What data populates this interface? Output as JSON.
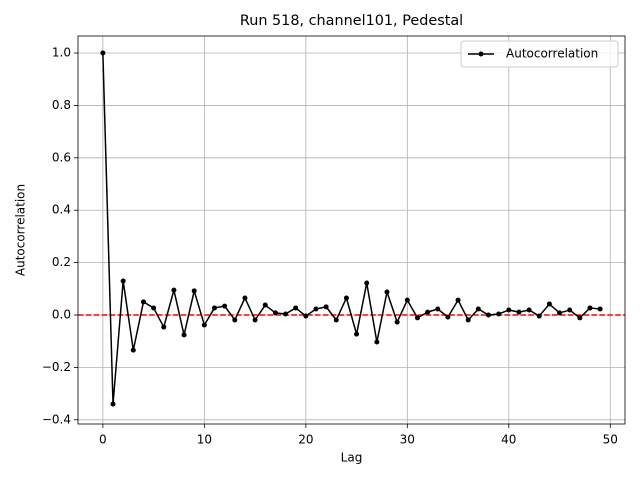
{
  "chart_data": {
    "type": "line",
    "title": "Run 518, channel101, Pedestal",
    "xlabel": "Lag",
    "ylabel": "Autocorrelation",
    "x": [
      0,
      1,
      2,
      3,
      4,
      5,
      6,
      7,
      8,
      9,
      10,
      11,
      12,
      13,
      14,
      15,
      16,
      17,
      18,
      19,
      20,
      21,
      22,
      23,
      24,
      25,
      26,
      27,
      28,
      29,
      30,
      31,
      32,
      33,
      34,
      35,
      36,
      37,
      38,
      39,
      40,
      41,
      42,
      43,
      44,
      45,
      46,
      47,
      48,
      49
    ],
    "series": [
      {
        "name": "Autocorrelation",
        "color": "#000000",
        "values": [
          1.0,
          -0.34,
          0.13,
          -0.134,
          0.05,
          0.027,
          -0.046,
          0.095,
          -0.076,
          0.092,
          -0.038,
          0.027,
          0.034,
          -0.019,
          0.065,
          -0.019,
          0.038,
          0.008,
          0.004,
          0.027,
          -0.004,
          0.023,
          0.031,
          -0.019,
          0.065,
          -0.073,
          0.122,
          -0.103,
          0.088,
          -0.027,
          0.057,
          -0.011,
          0.011,
          0.023,
          -0.008,
          0.057,
          -0.019,
          0.023,
          0.0,
          0.004,
          0.019,
          0.011,
          0.019,
          -0.004,
          0.042,
          0.008,
          0.019,
          -0.011,
          0.027,
          0.023
        ]
      }
    ],
    "hline": {
      "value": 0,
      "color": "#ff0000"
    },
    "xlim": [
      -2.45,
      51.45
    ],
    "xticks": [
      0,
      10,
      20,
      30,
      40,
      50
    ],
    "ylim": [
      -0.416,
      1.065
    ],
    "yticks": [
      {
        "value": -0.4,
        "label": "−0.4"
      },
      {
        "value": -0.2,
        "label": "−0.2"
      },
      {
        "value": 0,
        "label": "0.0"
      },
      {
        "value": 0.2,
        "label": "0.2"
      },
      {
        "value": 0.4,
        "label": "0.4"
      },
      {
        "value": 0.6,
        "label": "0.6"
      },
      {
        "value": 0.8,
        "label": "0.8"
      },
      {
        "value": 1.0,
        "label": "1.0"
      }
    ],
    "grid": true,
    "legend": "upper right"
  }
}
